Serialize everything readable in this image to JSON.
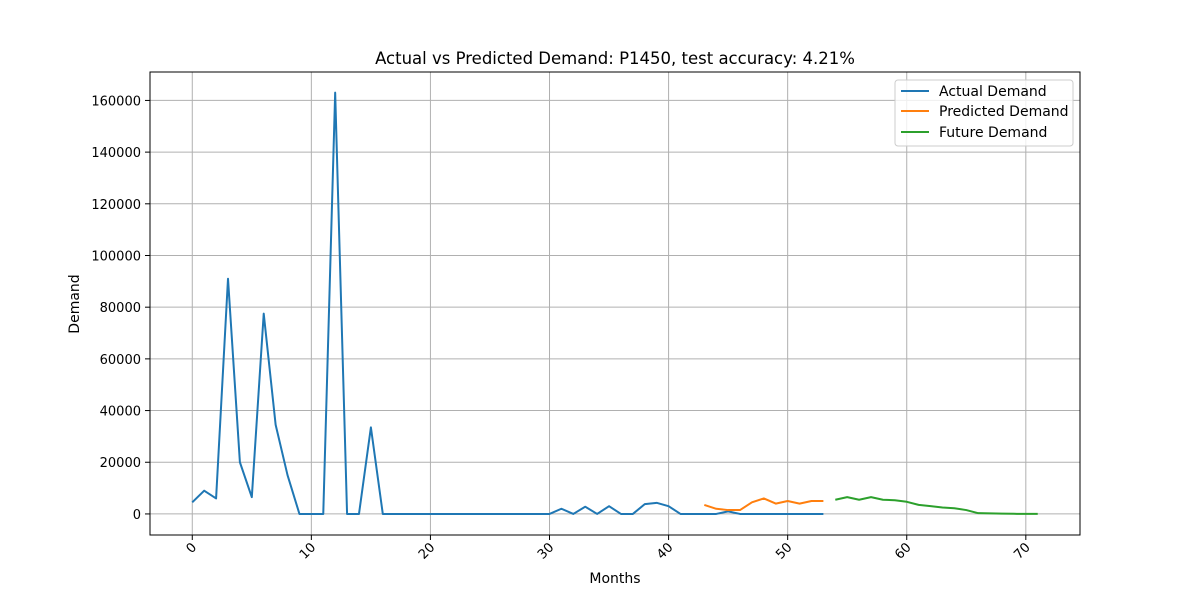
{
  "chart_data": {
    "type": "line",
    "title": "Actual vs Predicted Demand: P1450, test accuracy: 4.21%",
    "xlabel": "Months",
    "ylabel": "Demand",
    "xlim": [
      -3.55,
      74.55
    ],
    "ylim": [
      -8150,
      171000
    ],
    "xticks": [
      0,
      10,
      20,
      30,
      40,
      50,
      60,
      70
    ],
    "xtick_labels": [
      "0",
      "10",
      "20",
      "30",
      "40",
      "50",
      "60",
      "70"
    ],
    "xtick_rotation": 45,
    "yticks": [
      0,
      20000,
      40000,
      60000,
      80000,
      100000,
      120000,
      140000,
      160000
    ],
    "ytick_labels": [
      "0",
      "20000",
      "40000",
      "60000",
      "80000",
      "100000",
      "120000",
      "140000",
      "160000"
    ],
    "grid": true,
    "legend_position": "top-right",
    "series": [
      {
        "name": "Actual Demand",
        "color": "#1f77b4",
        "x": [
          0,
          1,
          2,
          3,
          4,
          5,
          6,
          7,
          8,
          9,
          10,
          11,
          12,
          13,
          14,
          15,
          16,
          17,
          18,
          19,
          20,
          21,
          22,
          23,
          24,
          25,
          26,
          27,
          28,
          29,
          30,
          31,
          32,
          33,
          34,
          35,
          36,
          37,
          38,
          39,
          40,
          41,
          42,
          43,
          44,
          45,
          46,
          47,
          48,
          49,
          50,
          51,
          52,
          53
        ],
        "values": [
          4500,
          9000,
          6000,
          91000,
          20000,
          6500,
          77500,
          34500,
          15000,
          0,
          0,
          0,
          163000,
          0,
          0,
          33500,
          0,
          0,
          0,
          0,
          0,
          0,
          0,
          0,
          0,
          0,
          0,
          0,
          0,
          0,
          0,
          2000,
          0,
          2800,
          0,
          3000,
          0,
          0,
          3800,
          4300,
          3000,
          0,
          0,
          0,
          0,
          1000,
          0,
          0,
          0,
          0,
          0,
          0,
          0,
          0
        ]
      },
      {
        "name": "Predicted Demand",
        "color": "#ff7f0e",
        "x": [
          43,
          44,
          45,
          46,
          47,
          48,
          49,
          50,
          51,
          52,
          53
        ],
        "values": [
          3500,
          2000,
          1500,
          1500,
          4500,
          6000,
          4000,
          5000,
          4000,
          5000,
          5000
        ]
      },
      {
        "name": "Future Demand",
        "color": "#2ca02c",
        "x": [
          54,
          55,
          56,
          57,
          58,
          59,
          60,
          61,
          62,
          63,
          64,
          65,
          66,
          67,
          68,
          69,
          70,
          71
        ],
        "values": [
          5500,
          6500,
          5500,
          6500,
          5500,
          5300,
          4700,
          3500,
          3000,
          2500,
          2200,
          1500,
          300,
          200,
          100,
          50,
          20,
          20
        ]
      }
    ]
  }
}
